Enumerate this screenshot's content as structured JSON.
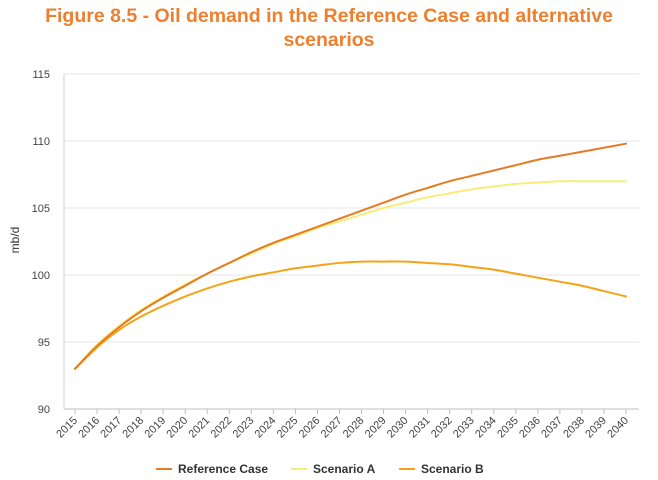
{
  "chart_data": {
    "type": "line",
    "title_line1": "Figure 8.5 - Oil demand in the Reference Case and alternative",
    "title_line2": "scenarios",
    "ylabel": "mb/d",
    "xlabel": "",
    "ylim": [
      90,
      115
    ],
    "yticks": [
      "90",
      "95",
      "100",
      "105",
      "110",
      "115"
    ],
    "categories": [
      "2015",
      "2016",
      "2017",
      "2018",
      "2019",
      "2020",
      "2021",
      "2022",
      "2023",
      "2024",
      "2025",
      "2026",
      "2027",
      "2028",
      "2029",
      "2030",
      "2031",
      "2032",
      "2033",
      "2034",
      "2035",
      "2036",
      "2037",
      "2038",
      "2039",
      "2040"
    ],
    "series": [
      {
        "name": "Reference Case",
        "color": "#e57b23",
        "values": [
          93.0,
          94.7,
          96.1,
          97.3,
          98.3,
          99.2,
          100.1,
          100.9,
          101.7,
          102.4,
          103.0,
          103.6,
          104.2,
          104.8,
          105.4,
          106.0,
          106.5,
          107.0,
          107.4,
          107.8,
          108.2,
          108.6,
          108.9,
          109.2,
          109.5,
          109.8
        ]
      },
      {
        "name": "Scenario A",
        "color": "#f9ec7a",
        "values": [
          93.0,
          94.8,
          96.2,
          97.4,
          98.4,
          99.3,
          100.1,
          100.9,
          101.6,
          102.3,
          102.9,
          103.5,
          104.0,
          104.5,
          105.0,
          105.4,
          105.8,
          106.1,
          106.4,
          106.6,
          106.8,
          106.9,
          107.0,
          107.0,
          107.0,
          107.0
        ]
      },
      {
        "name": "Scenario B",
        "color": "#f5a316",
        "values": [
          93.0,
          94.6,
          95.9,
          96.9,
          97.7,
          98.4,
          99.0,
          99.5,
          99.9,
          100.2,
          100.5,
          100.7,
          100.9,
          101.0,
          101.0,
          101.0,
          100.9,
          100.8,
          100.6,
          100.4,
          100.1,
          99.8,
          99.5,
          99.2,
          98.8,
          98.4
        ]
      }
    ],
    "legend": {
      "position": "bottom",
      "labels": [
        "Reference Case",
        "Scenario A",
        "Scenario B"
      ]
    },
    "grid": true
  }
}
